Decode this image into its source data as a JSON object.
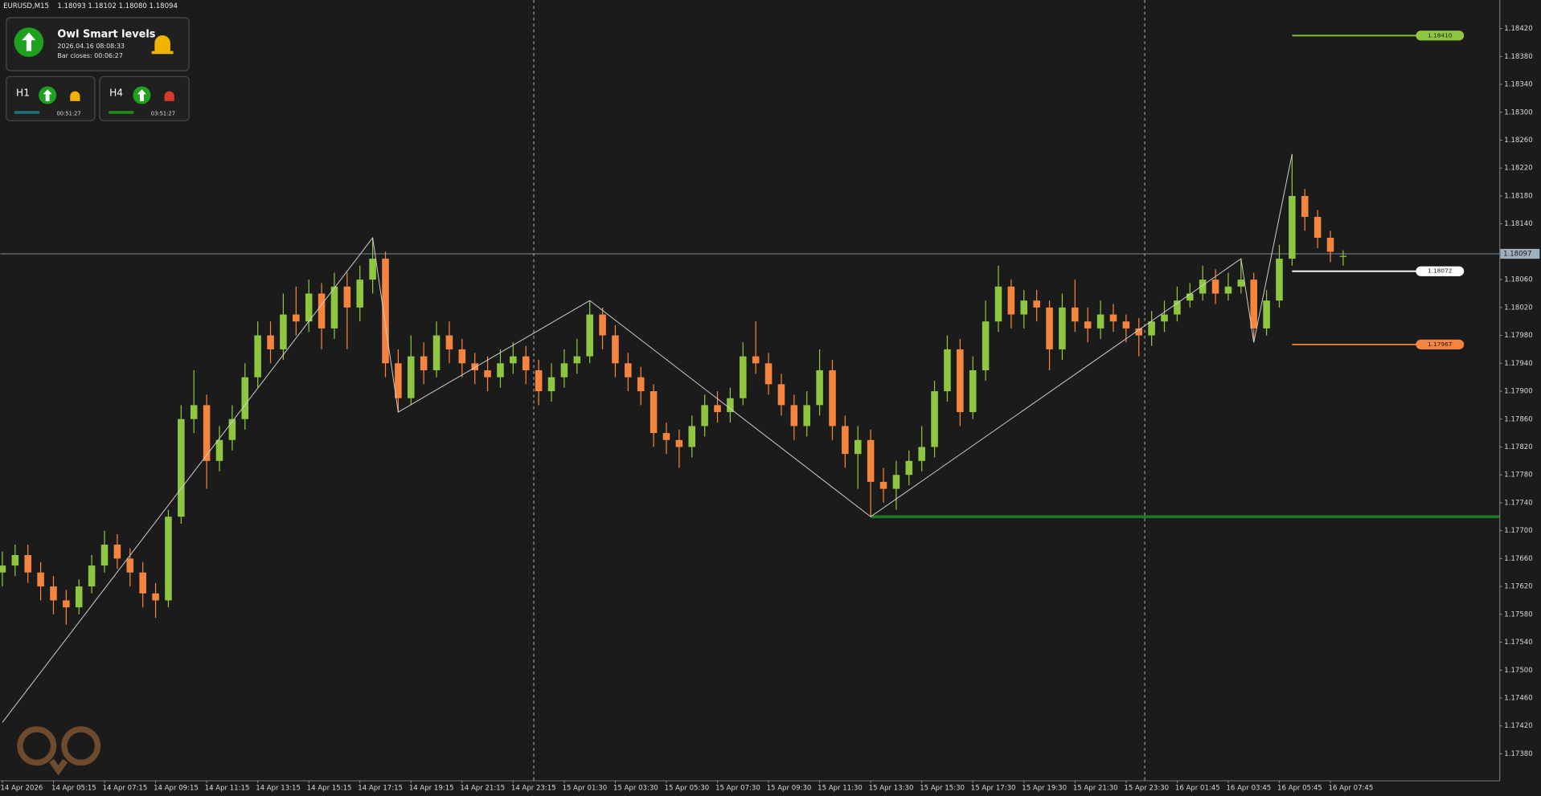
{
  "header": {
    "symbol": "EURUSD,M15",
    "quote": "1.18093 1.18102 1.18080 1.18094"
  },
  "panel": {
    "title": "Owl Smart levels",
    "datetime": "2026.04.16 08:08:33",
    "bar_closes": "Bar closes: 00:06:27",
    "frames": [
      {
        "name": "H1",
        "time": "00:51:27"
      },
      {
        "name": "H4",
        "time": "03:51:27"
      }
    ]
  },
  "chart_data": {
    "type": "candlestick",
    "categories": [
      "14 Apr 2026",
      null,
      null,
      null,
      "14 Apr 05:15",
      null,
      null,
      null,
      "14 Apr 07:15",
      null,
      null,
      null,
      "14 Apr 09:15",
      null,
      null,
      null,
      "14 Apr 11:15",
      null,
      null,
      null,
      "14 Apr 13:15",
      null,
      null,
      null,
      "14 Apr 15:15",
      null,
      null,
      null,
      "14 Apr 17:15",
      null,
      null,
      null,
      "14 Apr 19:15",
      null,
      null,
      null,
      "14 Apr 21:15",
      null,
      null,
      null,
      "14 Apr 23:15",
      null,
      null,
      null,
      "15 Apr 01:30",
      null,
      null,
      null,
      "15 Apr 03:30",
      null,
      null,
      null,
      "15 Apr 05:30",
      null,
      null,
      null,
      "15 Apr 07:30",
      null,
      null,
      null,
      "15 Apr 09:30",
      null,
      null,
      null,
      "15 Apr 11:30",
      null,
      null,
      null,
      "15 Apr 13:30",
      null,
      null,
      null,
      "15 Apr 15:30",
      null,
      null,
      null,
      "15 Apr 17:30",
      null,
      null,
      null,
      "15 Apr 19:30",
      null,
      null,
      null,
      "15 Apr 21:30",
      null,
      null,
      null,
      "15 Apr 23:30",
      null,
      null,
      null,
      "16 Apr 01:45",
      null,
      null,
      null,
      "16 Apr 03:45",
      null,
      null,
      null,
      "16 Apr 05:45",
      null,
      null,
      null,
      "16 Apr 07:45",
      null
    ],
    "open": [
      1.1764,
      1.1765,
      1.17665,
      1.1764,
      1.1762,
      1.176,
      1.1759,
      1.1762,
      1.1765,
      1.1768,
      1.1766,
      1.1764,
      1.1761,
      1.176,
      1.1772,
      1.1786,
      1.1788,
      1.178,
      1.1783,
      1.1786,
      1.1792,
      1.1798,
      1.1796,
      1.1801,
      1.18,
      1.1804,
      1.1799,
      1.1805,
      1.1802,
      1.1806,
      1.1809,
      1.1794,
      1.1789,
      1.1795,
      1.1793,
      1.1798,
      1.1796,
      1.1794,
      1.1793,
      1.1792,
      1.1794,
      1.1795,
      1.1793,
      1.179,
      1.1792,
      1.1794,
      1.1795,
      1.1801,
      1.1798,
      1.1794,
      1.1792,
      1.179,
      1.1784,
      1.1783,
      1.1782,
      1.1785,
      1.1788,
      1.1787,
      1.1789,
      1.1795,
      1.1794,
      1.1791,
      1.1788,
      1.1785,
      1.1788,
      1.1793,
      1.1785,
      1.1781,
      1.1783,
      1.1777,
      1.1776,
      1.1778,
      1.178,
      1.1782,
      1.179,
      1.1796,
      1.1787,
      1.1793,
      1.18,
      1.1805,
      1.1801,
      1.1803,
      1.1802,
      1.1796,
      1.1802,
      1.18,
      1.1799,
      1.1801,
      1.18,
      1.1799,
      1.1798,
      1.18,
      1.1801,
      1.1803,
      1.1804,
      1.1806,
      1.1804,
      1.1805,
      1.1806,
      1.1799,
      1.1803,
      1.1809,
      1.1818,
      1.1815,
      1.1812,
      1.18093
    ],
    "high": [
      1.1767,
      1.1768,
      1.1768,
      1.17655,
      1.17635,
      1.17615,
      1.1763,
      1.17665,
      1.177,
      1.17695,
      1.17675,
      1.17655,
      1.17625,
      1.1773,
      1.1788,
      1.1793,
      1.17895,
      1.1785,
      1.1788,
      1.1794,
      1.18,
      1.18,
      1.1804,
      1.1805,
      1.1806,
      1.18055,
      1.1807,
      1.1807,
      1.1808,
      1.1812,
      1.181,
      1.1796,
      1.1798,
      1.1797,
      1.18,
      1.18,
      1.17975,
      1.17955,
      1.1795,
      1.1796,
      1.1797,
      1.17965,
      1.17945,
      1.1794,
      1.1796,
      1.17975,
      1.1803,
      1.1802,
      1.17995,
      1.17955,
      1.17935,
      1.1791,
      1.17855,
      1.17845,
      1.17865,
      1.17895,
      1.179,
      1.17905,
      1.1797,
      1.18,
      1.17955,
      1.17925,
      1.17895,
      1.179,
      1.1796,
      1.17945,
      1.17865,
      1.1785,
      1.17845,
      1.1779,
      1.178,
      1.17815,
      1.1785,
      1.17915,
      1.1798,
      1.17975,
      1.1795,
      1.1803,
      1.1808,
      1.1806,
      1.18045,
      1.18045,
      1.1803,
      1.1804,
      1.1806,
      1.1802,
      1.1803,
      1.18025,
      1.1801,
      1.18005,
      1.18015,
      1.1803,
      1.1805,
      1.18055,
      1.1808,
      1.18075,
      1.1807,
      1.1809,
      1.1807,
      1.18045,
      1.1811,
      1.1824,
      1.1819,
      1.1816,
      1.1813,
      1.18102
    ],
    "low": [
      1.1762,
      1.17635,
      1.17625,
      1.176,
      1.1758,
      1.17565,
      1.1758,
      1.1761,
      1.1764,
      1.17645,
      1.1762,
      1.1759,
      1.17575,
      1.1759,
      1.1771,
      1.1784,
      1.1776,
      1.17785,
      1.17815,
      1.17845,
      1.17905,
      1.1794,
      1.17945,
      1.1798,
      1.17985,
      1.1796,
      1.17975,
      1.1796,
      1.18,
      1.1804,
      1.1792,
      1.1787,
      1.1788,
      1.1791,
      1.1792,
      1.1794,
      1.1792,
      1.1791,
      1.179,
      1.17905,
      1.17925,
      1.1791,
      1.1788,
      1.17885,
      1.17905,
      1.17925,
      1.1794,
      1.1796,
      1.1792,
      1.179,
      1.1788,
      1.1782,
      1.1781,
      1.1779,
      1.17805,
      1.17835,
      1.17855,
      1.17855,
      1.1788,
      1.17925,
      1.17895,
      1.17865,
      1.1783,
      1.17835,
      1.17865,
      1.1783,
      1.1779,
      1.1776,
      1.1772,
      1.1774,
      1.1773,
      1.17765,
      1.17785,
      1.17805,
      1.17885,
      1.1785,
      1.1786,
      1.17915,
      1.17985,
      1.1799,
      1.1799,
      1.18,
      1.1793,
      1.17945,
      1.17985,
      1.1797,
      1.17975,
      1.17985,
      1.1797,
      1.1795,
      1.17965,
      1.17985,
      1.18,
      1.1802,
      1.1803,
      1.18025,
      1.1803,
      1.1804,
      1.1797,
      1.1798,
      1.1802,
      1.1808,
      1.1813,
      1.18105,
      1.18085,
      1.1808
    ],
    "close": [
      1.1765,
      1.17665,
      1.1764,
      1.1762,
      1.176,
      1.1759,
      1.1762,
      1.1765,
      1.1768,
      1.1766,
      1.1764,
      1.1761,
      1.176,
      1.1772,
      1.1786,
      1.1788,
      1.178,
      1.1783,
      1.1786,
      1.1792,
      1.1798,
      1.1796,
      1.1801,
      1.18,
      1.1804,
      1.1799,
      1.1805,
      1.1802,
      1.1806,
      1.1809,
      1.1794,
      1.1789,
      1.1795,
      1.1793,
      1.1798,
      1.1796,
      1.1794,
      1.1793,
      1.1792,
      1.1794,
      1.1795,
      1.1793,
      1.179,
      1.1792,
      1.1794,
      1.1795,
      1.1801,
      1.1798,
      1.1794,
      1.1792,
      1.179,
      1.1784,
      1.1783,
      1.1782,
      1.1785,
      1.1788,
      1.1787,
      1.1789,
      1.1795,
      1.1794,
      1.1791,
      1.1788,
      1.1785,
      1.1788,
      1.1793,
      1.1785,
      1.1781,
      1.1783,
      1.1777,
      1.1776,
      1.1778,
      1.178,
      1.1782,
      1.179,
      1.1796,
      1.1787,
      1.1793,
      1.18,
      1.1805,
      1.1801,
      1.1803,
      1.1802,
      1.1796,
      1.1802,
      1.18,
      1.1799,
      1.1801,
      1.18,
      1.1799,
      1.1798,
      1.18,
      1.1801,
      1.1803,
      1.1804,
      1.1806,
      1.1804,
      1.1805,
      1.1806,
      1.1799,
      1.1803,
      1.1809,
      1.1818,
      1.1815,
      1.1812,
      1.181,
      1.18094
    ],
    "up_color": "#8ec63f",
    "down_color": "#f5843f",
    "ylim": [
      1.17342,
      1.18461
    ],
    "yticks": [
      {
        "value": 1.1738,
        "label": "1.17380"
      },
      {
        "value": 1.1742,
        "label": "1.17420"
      },
      {
        "value": 1.1746,
        "label": "1.17460"
      },
      {
        "value": 1.175,
        "label": "1.17500"
      },
      {
        "value": 1.1754,
        "label": "1.17540"
      },
      {
        "value": 1.1758,
        "label": "1.17580"
      },
      {
        "value": 1.1762,
        "label": "1.17620"
      },
      {
        "value": 1.1766,
        "label": "1.17660"
      },
      {
        "value": 1.177,
        "label": "1.17700"
      },
      {
        "value": 1.1774,
        "label": "1.17740"
      },
      {
        "value": 1.1778,
        "label": "1.17780"
      },
      {
        "value": 1.1782,
        "label": "1.17820"
      },
      {
        "value": 1.1786,
        "label": "1.17860"
      },
      {
        "value": 1.179,
        "label": "1.17900"
      },
      {
        "value": 1.1794,
        "label": "1.17940"
      },
      {
        "value": 1.1798,
        "label": "1.17980"
      },
      {
        "value": 1.1802,
        "label": "1.18020"
      },
      {
        "value": 1.1806,
        "label": "1.18060"
      },
      {
        "value": 1.1814,
        "label": "1.18140"
      },
      {
        "value": 1.1818,
        "label": "1.18180"
      },
      {
        "value": 1.1822,
        "label": "1.18220"
      },
      {
        "value": 1.1826,
        "label": "1.18260"
      },
      {
        "value": 1.183,
        "label": "1.18300"
      },
      {
        "value": 1.1834,
        "label": "1.18340"
      },
      {
        "value": 1.1838,
        "label": "1.18380"
      },
      {
        "value": 1.1842,
        "label": "1.18420"
      }
    ],
    "grid": false,
    "current_price": {
      "value": 1.18097,
      "label": "1.18097",
      "color": "#9fb0bf"
    },
    "zigzag": {
      "x": [
        0,
        29,
        31,
        46,
        68,
        97,
        98,
        101
      ],
      "values": [
        1.17425,
        1.1812,
        1.1787,
        1.1803,
        1.1772,
        1.1809,
        1.1797,
        1.1824
      ],
      "color": "#d0d0d0"
    },
    "support": {
      "value": 1.1772,
      "color": "#1f7a1f"
    },
    "levels": [
      {
        "value": 1.1841,
        "label": "1.18410",
        "color": "#8ec63f"
      },
      {
        "value": 1.18072,
        "label": "1.18072",
        "color": "#ffffff"
      },
      {
        "value": 1.17967,
        "label": "1.17967",
        "color": "#f5843f"
      }
    ]
  }
}
